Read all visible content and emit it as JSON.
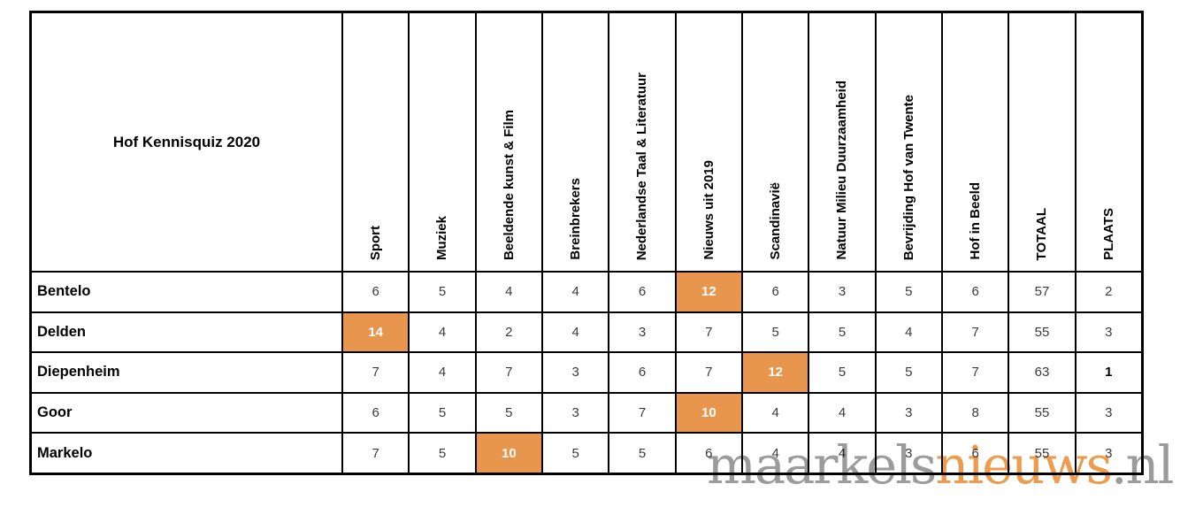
{
  "chart_data": {
    "type": "table",
    "title": "Hof Kennisquiz 2020",
    "columns": [
      "Sport",
      "Muziek",
      "Beeldende kunst & Film",
      "Breinbrekers",
      "Nederlandse Taal & Literatuur",
      "Nieuws uit 2019",
      "Scandinavië",
      "Natuur Milieu Duurzaamheid",
      "Bevrijding Hof van Twente",
      "Hof in Beeld",
      "TOTAAL",
      "PLAATS"
    ],
    "rows": [
      {
        "label": "Bentelo",
        "values": [
          "6",
          "5",
          "4",
          "4",
          "6",
          "12",
          "6",
          "3",
          "5",
          "6",
          "57",
          "2"
        ],
        "highlight_col": 5
      },
      {
        "label": "Delden",
        "values": [
          "14",
          "4",
          "2",
          "4",
          "3",
          "7",
          "5",
          "5",
          "4",
          "7",
          "55",
          "3"
        ],
        "highlight_col": 0
      },
      {
        "label": "Diepenheim",
        "values": [
          "7",
          "4",
          "7",
          "3",
          "6",
          "7",
          "12",
          "5",
          "5",
          "7",
          "63",
          "1"
        ],
        "highlight_col": 6,
        "bold_col": 11
      },
      {
        "label": "Goor",
        "values": [
          "6",
          "5",
          "5",
          "3",
          "7",
          "10",
          "4",
          "4",
          "3",
          "8",
          "55",
          "3"
        ],
        "highlight_col": 5
      },
      {
        "label": "Markelo",
        "values": [
          "7",
          "5",
          "10",
          "5",
          "5",
          "6",
          "4",
          "4",
          "3",
          "6",
          "55",
          "3"
        ],
        "highlight_col": 2
      }
    ],
    "layout_hints": {
      "rotated_headers": true,
      "highlight_meaning": "highest score per category round"
    }
  },
  "watermark": {
    "part1": "maarkels",
    "part2": "nieuws",
    "part3": ".nl"
  },
  "colors": {
    "highlight": "#E8964E",
    "highlight_text": "#FFFFFF",
    "number_text": "#3B3B3B",
    "grid": "#000000",
    "watermark_gray": "#9B9B9B",
    "watermark_orange": "#EE9B4D"
  }
}
